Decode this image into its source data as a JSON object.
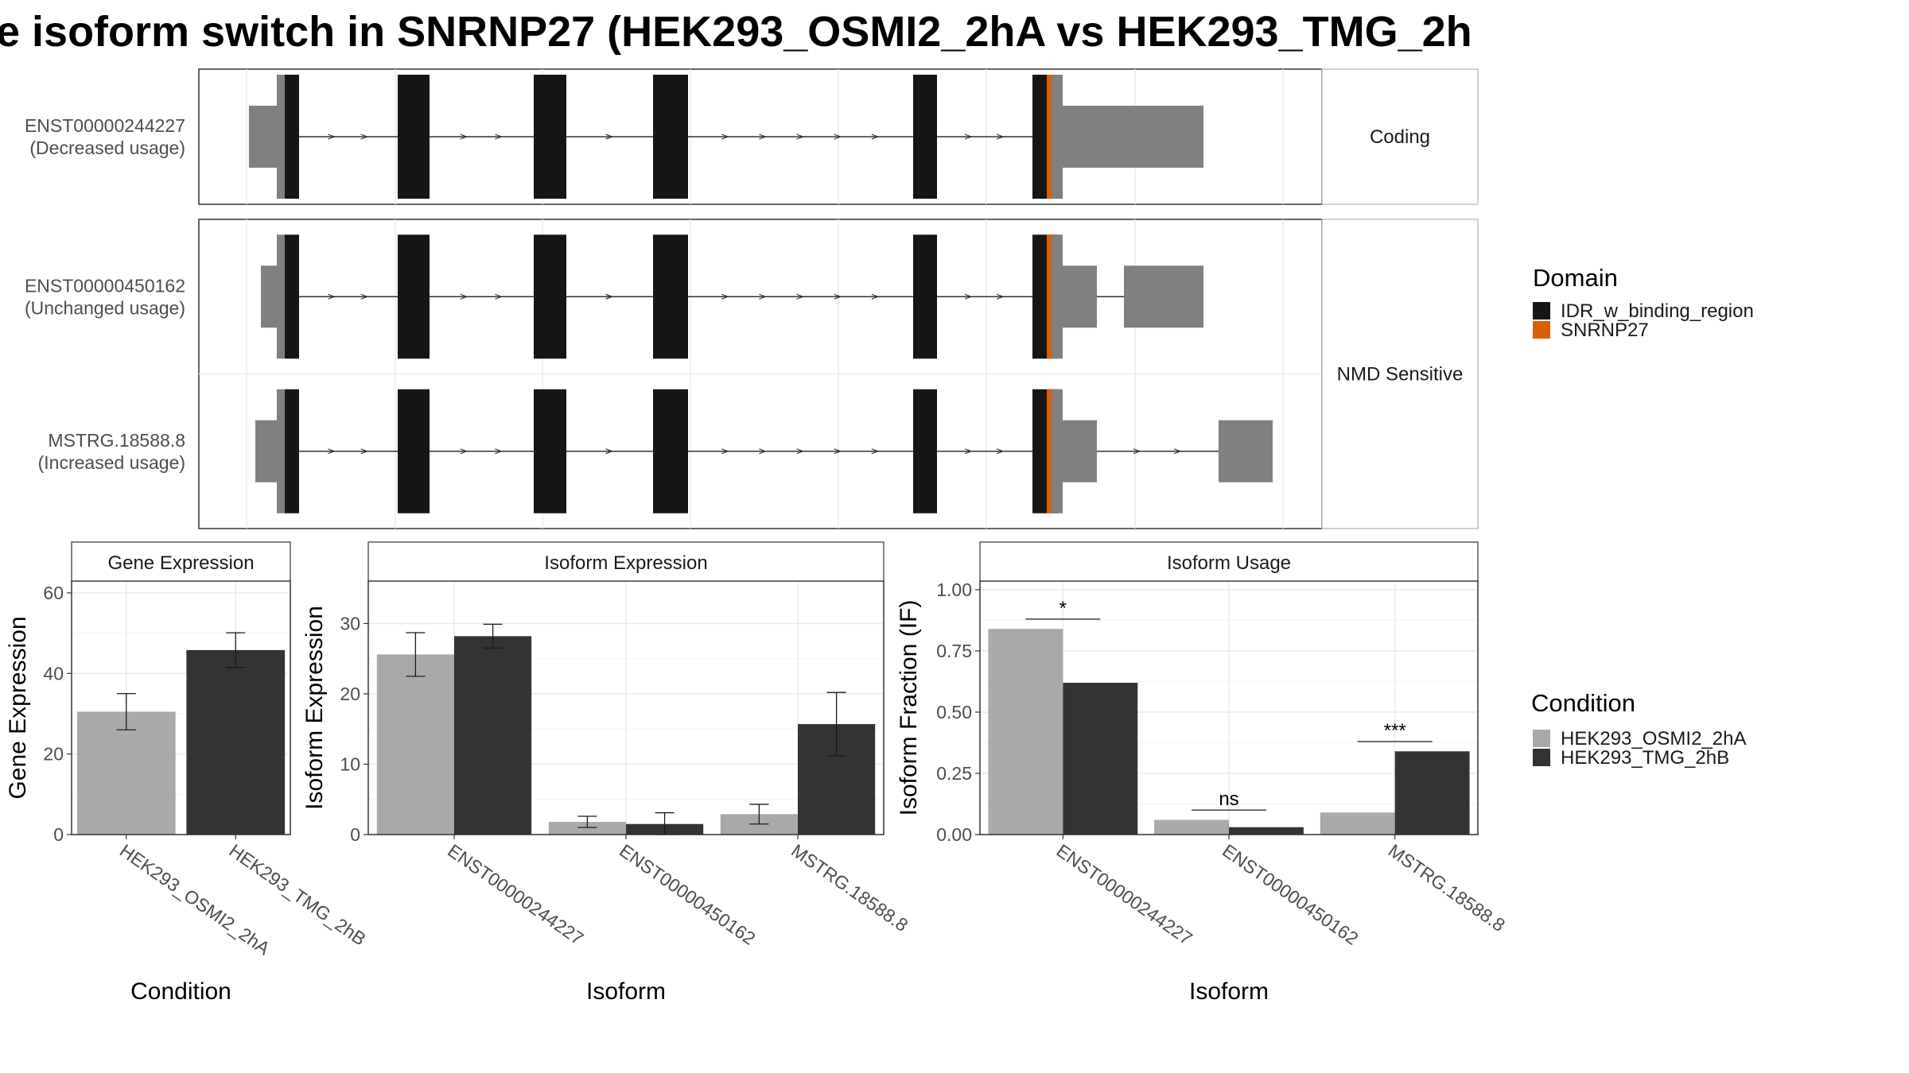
{
  "title": "e isoform switch in SNRNP27 (HEK293_OSMI2_2hA vs HEK293_TMG_2h",
  "colors": {
    "condition_a": "#a9a9a9",
    "condition_b": "#333333",
    "idr": "#161616",
    "snrnp27": "#d95f02",
    "utr": "#808080"
  },
  "legends": {
    "domain": {
      "title": "Domain",
      "items": [
        {
          "label": "IDR_w_binding_region",
          "color": "#161616"
        },
        {
          "label": "SNRNP27",
          "color": "#d95f02"
        }
      ]
    },
    "condition": {
      "title": "Condition",
      "items": [
        {
          "label": "HEK293_OSMI2_2hA",
          "color": "#a9a9a9"
        },
        {
          "label": "HEK293_TMG_2hB",
          "color": "#333333"
        }
      ]
    }
  },
  "structure": {
    "groups": [
      {
        "label": "Coding",
        "rows": [
          {
            "id": "ENST00000244227",
            "usage": "(Decreased usage)"
          }
        ]
      },
      {
        "label": "NMD Sensitive",
        "rows": [
          {
            "id": "ENST00000450162",
            "usage": "(Unchanged usage)"
          },
          {
            "id": "MSTRG.18588.8",
            "usage": "(Increased usage)"
          }
        ]
      }
    ]
  },
  "chart_data": [
    {
      "type": "bar",
      "title": "Gene Expression",
      "xlabel": "Condition",
      "ylabel": "Gene Expression",
      "ylim": [
        0,
        62
      ],
      "yticks": [
        0,
        20,
        40,
        60
      ],
      "categories": [
        "HEK293_OSMI2_2hA",
        "HEK293_TMG_2hB"
      ],
      "series": [
        {
          "name": "HEK293_OSMI2_2hA",
          "values": [
            30.5,
            null
          ],
          "err": [
            4.5,
            null
          ]
        },
        {
          "name": "HEK293_TMG_2hB",
          "values": [
            null,
            45.8
          ],
          "err": [
            null,
            4.3
          ]
        }
      ]
    },
    {
      "type": "bar",
      "title": "Isoform Expression",
      "xlabel": "Isoform",
      "ylabel": "Isoform Expression",
      "ylim": [
        0,
        35.5
      ],
      "yticks": [
        0,
        10,
        20,
        30
      ],
      "categories": [
        "ENST00000244227",
        "ENST00000450162",
        "MSTRG.18588.8"
      ],
      "series": [
        {
          "name": "HEK293_OSMI2_2hA",
          "values": [
            25.6,
            1.8,
            2.9
          ],
          "err": [
            3.1,
            0.8,
            1.4
          ]
        },
        {
          "name": "HEK293_TMG_2hB",
          "values": [
            28.2,
            1.5,
            15.7
          ],
          "err": [
            1.7,
            1.6,
            4.5
          ]
        }
      ]
    },
    {
      "type": "bar",
      "title": "Isoform Usage",
      "xlabel": "Isoform",
      "ylabel": "Isoform Fraction (IF)",
      "ylim": [
        0,
        1.02
      ],
      "yticks": [
        "0.00",
        "0.25",
        "0.50",
        "0.75",
        "1.00"
      ],
      "categories": [
        "ENST00000244227",
        "ENST00000450162",
        "MSTRG.18588.8"
      ],
      "series": [
        {
          "name": "HEK293_OSMI2_2hA",
          "values": [
            0.84,
            0.06,
            0.09
          ]
        },
        {
          "name": "HEK293_TMG_2hB",
          "values": [
            0.62,
            0.03,
            0.34
          ]
        }
      ],
      "significance": [
        {
          "category": "ENST00000244227",
          "label": "*",
          "y": 0.88
        },
        {
          "category": "ENST00000450162",
          "label": "ns",
          "y": 0.1
        },
        {
          "category": "MSTRG.18588.8",
          "label": "***",
          "y": 0.38
        }
      ]
    }
  ]
}
